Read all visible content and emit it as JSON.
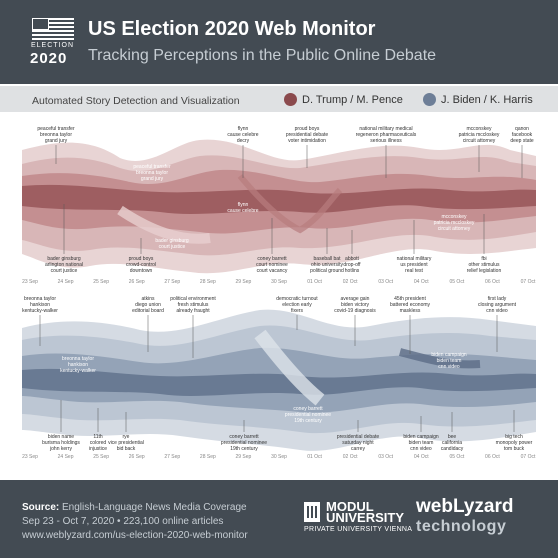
{
  "header": {
    "logo_word": "ELECTION",
    "logo_year": "2020",
    "title": "US Election 2020 Web Monitor",
    "subtitle": "Tracking Perceptions in the Public Online Debate"
  },
  "legend": {
    "left_label": "Automated Story Detection and Visualization",
    "items": [
      {
        "label": "D. Trump / M. Pence",
        "color": "#8b4a4d"
      },
      {
        "label": "J. Biden / K. Harris",
        "color": "#6d7e97"
      }
    ]
  },
  "colors": {
    "header_bg": "#434b53",
    "trump": "#8b4a4d",
    "biden": "#6d7e97"
  },
  "trump_chart": {
    "dates": [
      "23 Sep",
      "24 Sep",
      "25 Sep",
      "26 Sep",
      "27 Sep",
      "28 Sep",
      "29 Sep",
      "30 Sep",
      "01 Oct",
      "02 Oct",
      "03 Oct",
      "04 Oct",
      "05 Oct",
      "06 Oct",
      "07 Oct"
    ],
    "top_labels": [
      {
        "lines": [
          "peaceful transfer",
          "breonna taylor",
          "grand jury"
        ]
      },
      {
        "lines": [
          "flynn",
          "cause celebre",
          "decry"
        ]
      },
      {
        "lines": [
          "proud boys",
          "presidential debate",
          "voter intimidation"
        ]
      },
      {
        "lines": [
          "national military medical",
          "regeneron pharmaceuticals",
          "serious illness"
        ]
      },
      {
        "lines": [
          "mcconskey",
          "patricia mccloskey",
          "circuit attorney"
        ]
      },
      {
        "lines": [
          "qanon",
          "facebook",
          "deep state"
        ]
      }
    ],
    "bottom_labels": [
      {
        "lines": [
          "bader ginsburg",
          "arlington national",
          "court justice"
        ]
      },
      {
        "lines": [
          "proud boys",
          "crowd-control",
          "downtown"
        ]
      },
      {
        "lines": [
          "coney barrett",
          "court nominee",
          "court vacancy"
        ]
      },
      {
        "lines": [
          "baseball bat",
          "ohio university",
          "political ground"
        ]
      },
      {
        "lines": [
          "abbott",
          "drop-off",
          "hotlins"
        ]
      },
      {
        "lines": [
          "national military",
          "us president",
          "real test"
        ]
      },
      {
        "lines": [
          "fbi",
          "other stimulus",
          "relief legislation"
        ]
      }
    ]
  },
  "biden_chart": {
    "dates": [
      "23 Sep",
      "24 Sep",
      "25 Sep",
      "26 Sep",
      "27 Sep",
      "28 Sep",
      "29 Sep",
      "30 Sep",
      "01 Oct",
      "02 Oct",
      "03 Oct",
      "04 Oct",
      "05 Oct",
      "06 Oct",
      "07 Oct"
    ],
    "top_labels": [
      {
        "lines": [
          "breonna taylor",
          "hankison",
          "kentucky-walker"
        ]
      },
      {
        "lines": [
          "atkins",
          "diego union",
          "editorial board"
        ]
      },
      {
        "lines": [
          "political environment",
          "fresh stimulus",
          "already fraught"
        ]
      },
      {
        "lines": [
          "democratic turnout",
          "election early",
          "fixers"
        ]
      },
      {
        "lines": [
          "average gain",
          "biden victory",
          "covid-19 diagnosis"
        ]
      },
      {
        "lines": [
          "45th president",
          "battered economy",
          "maskless"
        ]
      },
      {
        "lines": [
          "first lady",
          "closing argument",
          "cnn video"
        ]
      }
    ],
    "bottom_labels": [
      {
        "lines": [
          "biden name",
          "burisma holdings",
          "john kerry"
        ]
      },
      {
        "lines": [
          "11th",
          "colored",
          "injustice"
        ]
      },
      {
        "lines": [
          "rye",
          "vice presidential",
          "bid back"
        ]
      },
      {
        "lines": [
          "coney barrett",
          "presidential nominee",
          "19th century"
        ]
      },
      {
        "lines": [
          "presidential debate",
          "saturday night",
          "carrey"
        ]
      },
      {
        "lines": [
          "biden campaign",
          "biden team",
          "cnn video"
        ]
      },
      {
        "lines": [
          "bee",
          "california",
          "candidacy"
        ]
      },
      {
        "lines": [
          "big tech",
          "monopoly power",
          "tom buck"
        ]
      }
    ]
  },
  "footer": {
    "source_label": "Source:",
    "source_value": "English-Language News Media Coverage",
    "range": "Sep 23 - Oct 7, 2020 • 223,100 online articles",
    "url": "www.weblyzard.com/us-election-2020-web-monitor",
    "modul_line1": "MODUL",
    "modul_line2": "UNIVERSITY",
    "modul_sub": "PRIVATE UNIVERSITY VIENNA",
    "weblyzard_1": "webLyzard",
    "weblyzard_2": "technology"
  }
}
